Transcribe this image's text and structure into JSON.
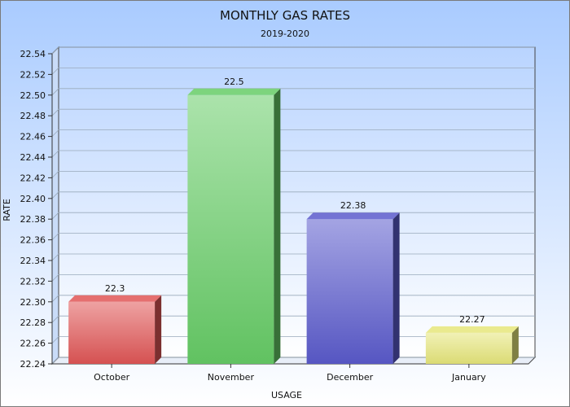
{
  "chart_data": {
    "type": "bar",
    "title": "MONTHLY GAS RATES",
    "subtitle": "2019-2020",
    "xlabel": "USAGE",
    "ylabel": "RATE",
    "categories": [
      "October",
      "November",
      "December",
      "January"
    ],
    "values": [
      22.3,
      22.5,
      22.38,
      22.27
    ],
    "value_labels": [
      "22.3",
      "22.5",
      "22.38",
      "22.27"
    ],
    "ylim": [
      22.24,
      22.54
    ],
    "yticks": [
      "22.24",
      "22.26",
      "22.28",
      "22.30",
      "22.32",
      "22.34",
      "22.36",
      "22.38",
      "22.40",
      "22.42",
      "22.44",
      "22.46",
      "22.48",
      "22.50",
      "22.52",
      "22.54"
    ],
    "bar_colors": [
      "#e05555",
      "#66cc66",
      "#5a5acc",
      "#e6e67a"
    ],
    "grid": true,
    "legend": "none"
  }
}
